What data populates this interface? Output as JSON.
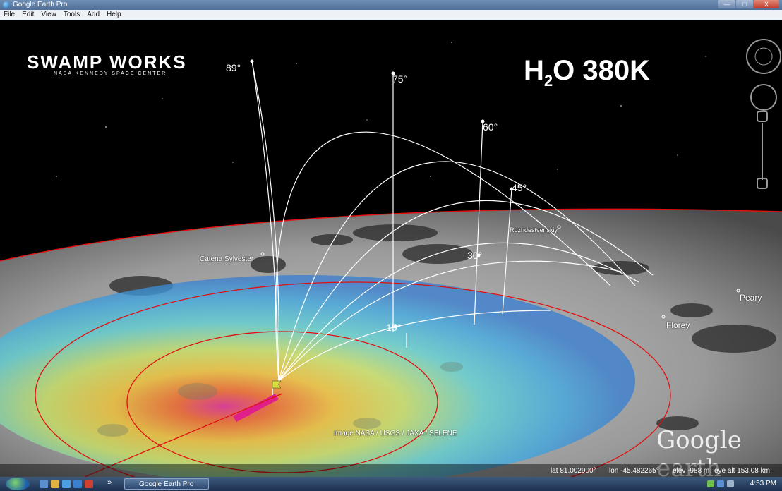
{
  "window": {
    "title": "Google Earth Pro",
    "btn_min": "—",
    "btn_max": "□",
    "btn_close": "X"
  },
  "menu": [
    "File",
    "Edit",
    "View",
    "Tools",
    "Add",
    "Help"
  ],
  "overlay": {
    "logo_main": "SWAMP WORKS",
    "logo_sub": "NASA KENNEDY SPACE CENTER",
    "title_h": "H",
    "title_sub": "2",
    "title_rest": "O 380K"
  },
  "angles": [
    "89°",
    "75°",
    "60°",
    "45°",
    "30°",
    "15°"
  ],
  "places": [
    "Catena Sylvester",
    "Rozhdestvenskiy",
    "Peary",
    "Florey"
  ],
  "attribution": "Image NASA / USGS / JAXA / SELENE",
  "watermark": "Google earth",
  "status": {
    "lat": "lat  81.002900°",
    "lon": "lon  -45.482265°",
    "elev": "elev  -988 m",
    "eye": "eye alt 153.08 km"
  },
  "taskbar": {
    "task": "Google Earth Pro",
    "arrows": "»",
    "clock": "4:53 PM"
  },
  "colors": {
    "trajectory": "#ffffff",
    "contour": "#e01010",
    "heat_peak": "#e0208a",
    "heat_edge": "#3a7fd0"
  }
}
